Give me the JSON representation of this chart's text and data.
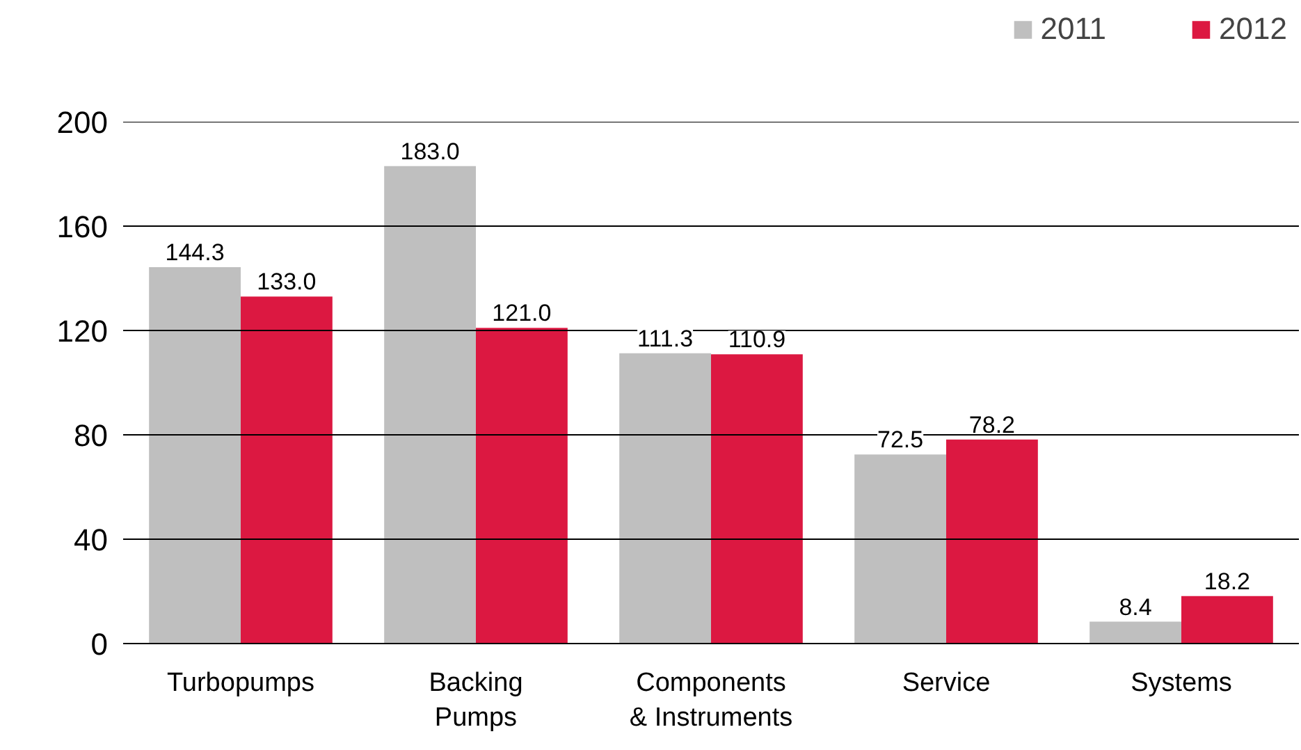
{
  "chart_data": {
    "type": "bar",
    "categories": [
      "Turbopumps",
      "Backing Pumps",
      "Components & Instruments",
      "Service",
      "Systems"
    ],
    "series": [
      {
        "name": "2011",
        "color": "#bfbfbf",
        "values": [
          144.3,
          183.0,
          111.3,
          72.5,
          8.4
        ],
        "value_labels": [
          "144.3",
          "183.0",
          "111.3",
          "72.5",
          "8.4"
        ]
      },
      {
        "name": "2012",
        "color": "#dc1841",
        "values": [
          133.0,
          121.0,
          110.9,
          78.2,
          18.2
        ],
        "value_labels": [
          "133.0",
          "121.0",
          "110.9",
          "78.2",
          "18.2"
        ]
      }
    ],
    "ylim": [
      0,
      200
    ],
    "yticks": [
      0,
      40,
      80,
      120,
      160,
      200
    ],
    "grid": "y",
    "legend": "top right"
  }
}
